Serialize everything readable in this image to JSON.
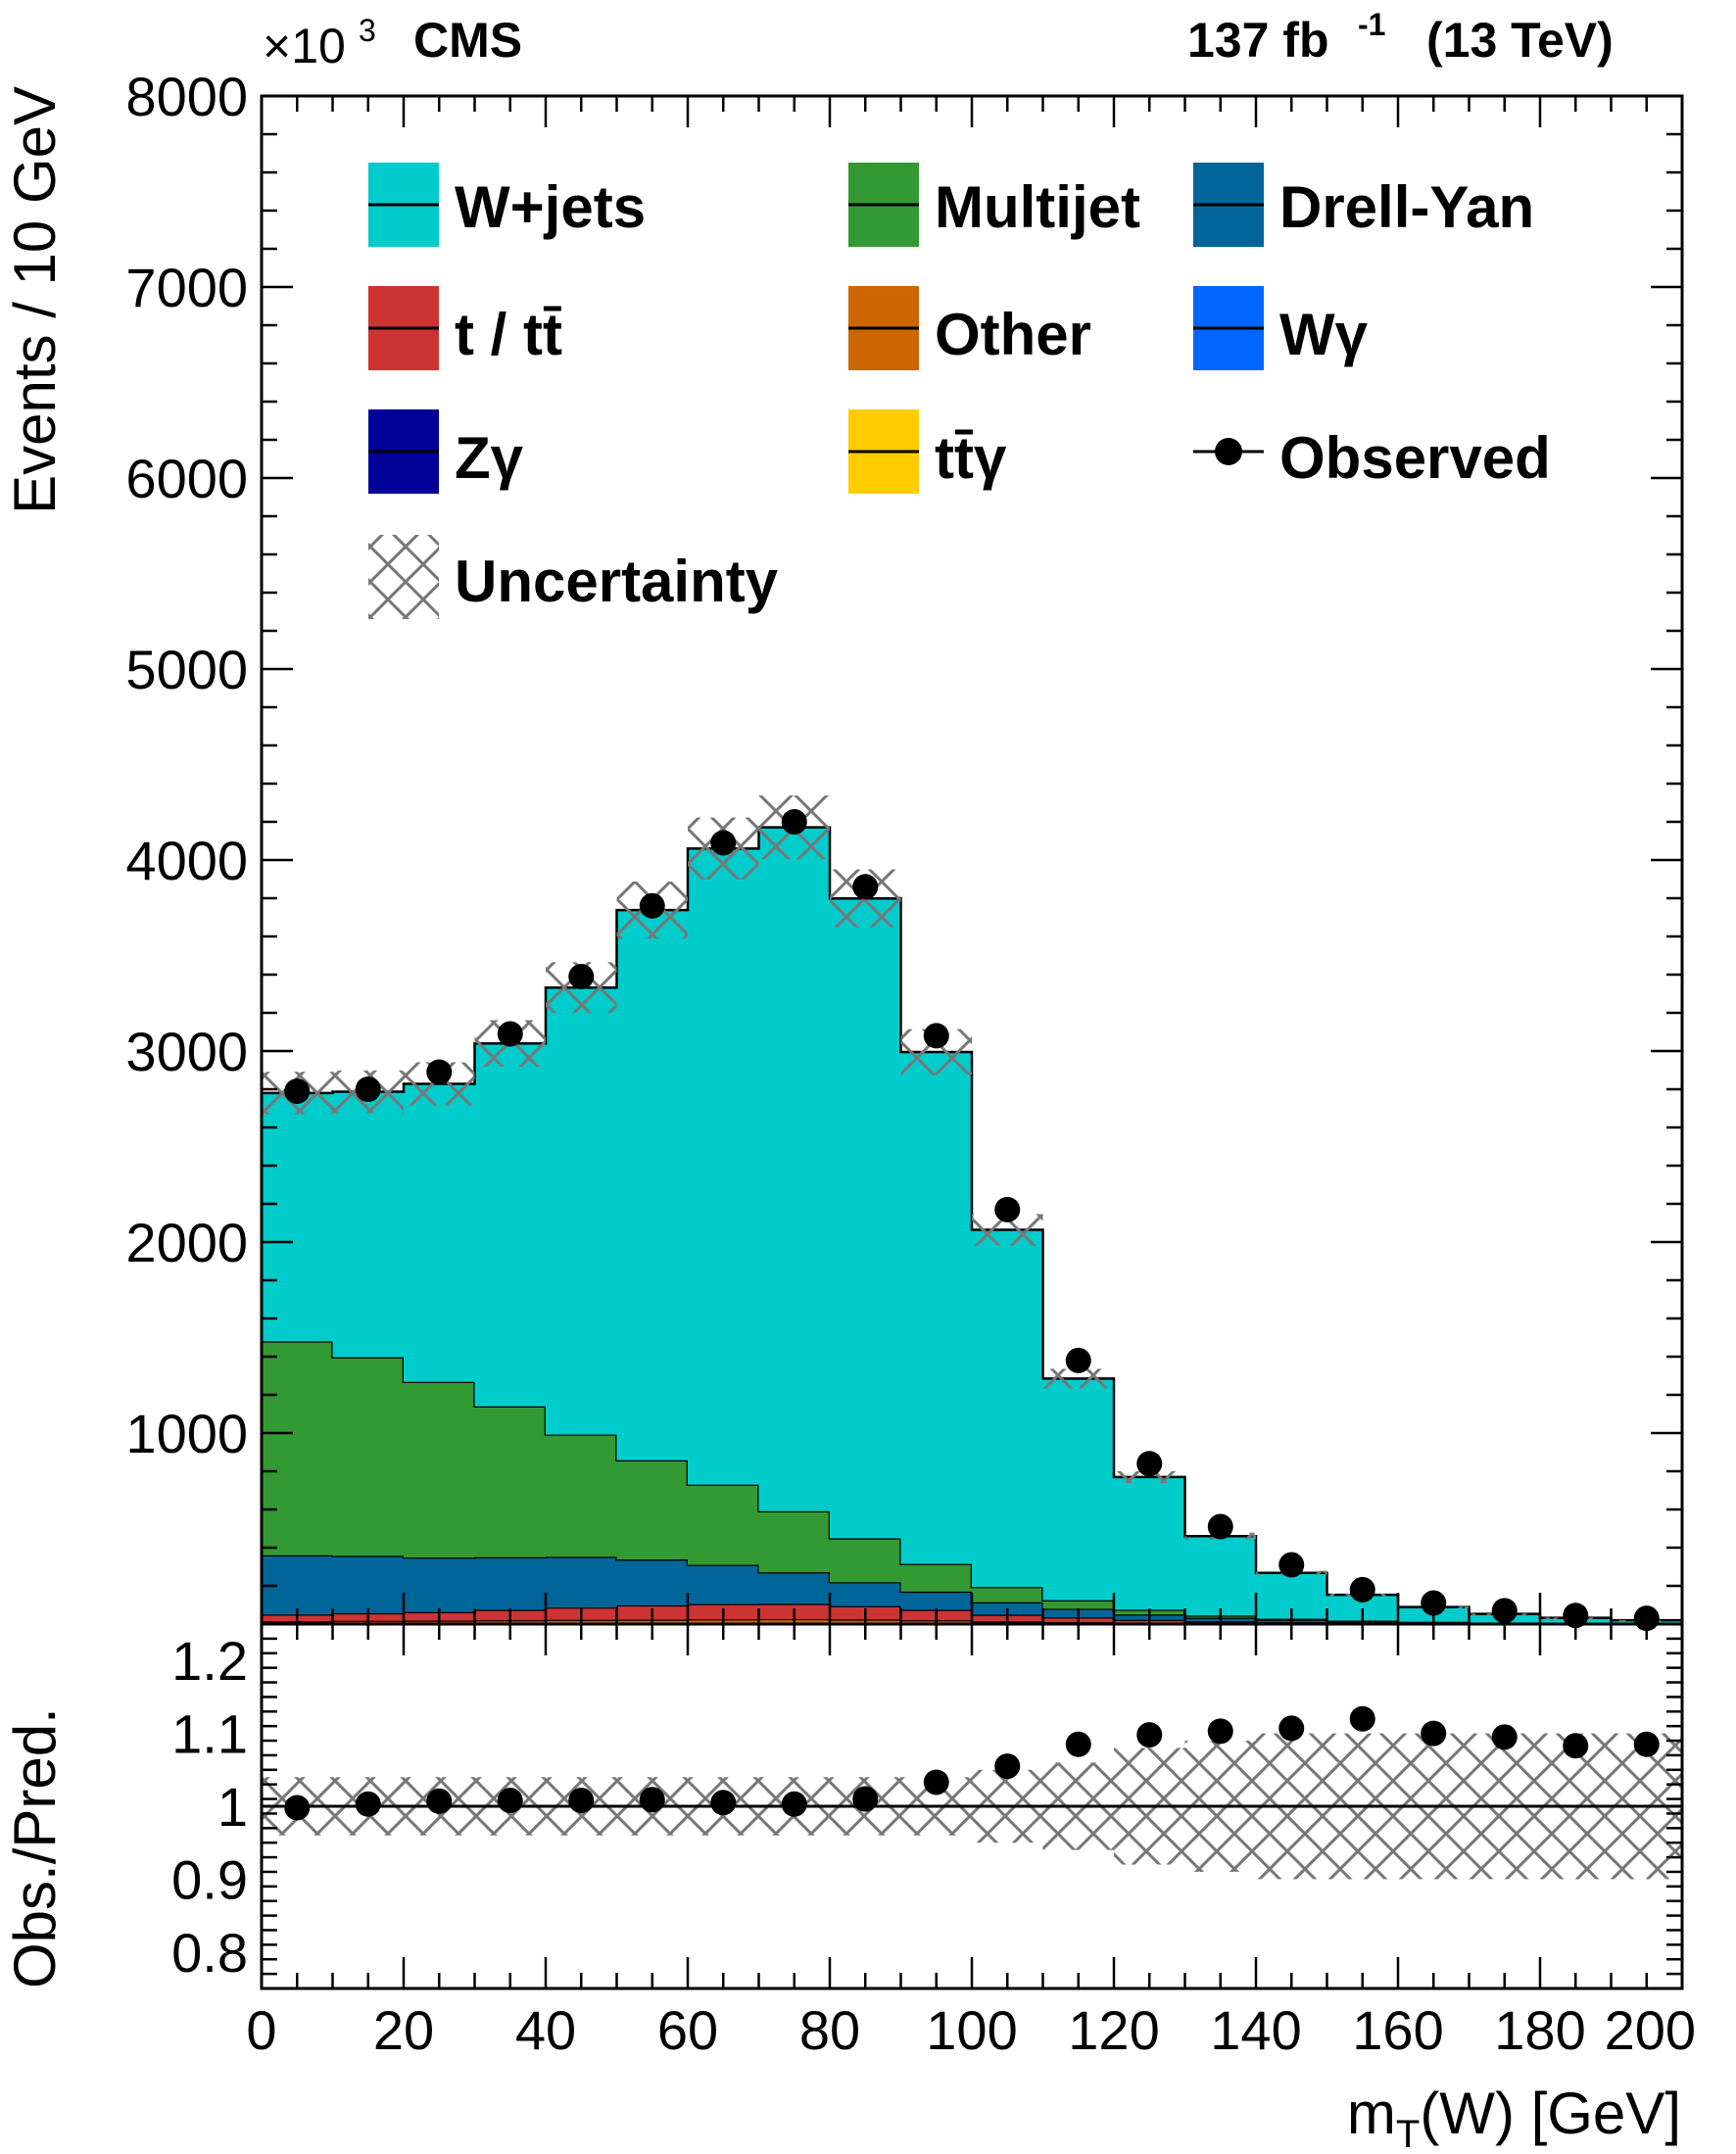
{
  "header": {
    "multiplier_base": "×10",
    "multiplier_exp": "3",
    "experiment": "CMS",
    "lumi_value": "137 fb",
    "lumi_exp": "-1",
    "lumi_energy": "(13 TeV)"
  },
  "chart_data": [
    {
      "type": "bar",
      "stacked": true,
      "xlabel_main": "m",
      "xlabel_sub": "T",
      "xlabel_rest": "(W) [GeV]",
      "ylabel": "Events / 10 GeV",
      "xlim": [
        0,
        200
      ],
      "ylim": [
        0,
        8000
      ],
      "bin_edges": [
        0,
        10,
        20,
        30,
        40,
        50,
        60,
        70,
        80,
        90,
        100,
        110,
        120,
        130,
        140,
        150,
        160,
        170,
        180,
        190,
        200
      ],
      "x_ticks": [
        0,
        20,
        40,
        60,
        80,
        100,
        120,
        140,
        160,
        180,
        200
      ],
      "x_tick_labels": [
        "0",
        "20",
        "40",
        "60",
        "80",
        "100",
        "120",
        "140",
        "160",
        "180",
        "200"
      ],
      "y_ticks": [
        1000,
        2000,
        3000,
        4000,
        5000,
        6000,
        7000,
        8000
      ],
      "y_tick_labels": [
        "1000",
        "2000",
        "3000",
        "4000",
        "5000",
        "6000",
        "7000",
        "8000"
      ],
      "grid": false,
      "legend_position": "top",
      "series": [
        {
          "name": "Other",
          "color": "#cc6600",
          "values": [
            15,
            17,
            18,
            20,
            22,
            23,
            25,
            26,
            24,
            20,
            14,
            10,
            7,
            5,
            4,
            3,
            2,
            2,
            1,
            1
          ]
        },
        {
          "name": "t / tt̄",
          "color": "#cc3333",
          "values": [
            35,
            40,
            45,
            55,
            65,
            75,
            80,
            80,
            70,
            55,
            35,
            25,
            15,
            10,
            6,
            4,
            3,
            2,
            1,
            1
          ]
        },
        {
          "name": "Drell-Yan",
          "color": "#006699",
          "values": [
            310,
            300,
            285,
            275,
            265,
            240,
            205,
            165,
            125,
            95,
            65,
            45,
            28,
            18,
            12,
            8,
            5,
            3,
            2,
            1
          ]
        },
        {
          "name": "Multijet",
          "color": "#339933",
          "values": [
            1120,
            1040,
            920,
            790,
            640,
            520,
            420,
            320,
            230,
            145,
            80,
            45,
            25,
            12,
            6,
            3,
            2,
            1,
            1,
            0
          ]
        },
        {
          "name": "W+jets",
          "color": "#00cccc",
          "values": [
            1300,
            1390,
            1560,
            1900,
            2340,
            2880,
            3330,
            3580,
            3350,
            2680,
            1870,
            1160,
            695,
            415,
            240,
            135,
            77,
            45,
            28,
            17
          ]
        }
      ],
      "observed": {
        "name": "Observed",
        "values": [
          2790,
          2800,
          2890,
          3090,
          3390,
          3760,
          4090,
          4200,
          3860,
          3080,
          2170,
          1380,
          840,
          510,
          310,
          180,
          110,
          70,
          45,
          30
        ]
      },
      "uncertainty": {
        "name": "Uncertainty",
        "rel": 0.04
      },
      "legend": {
        "labels": [
          "W+jets",
          "Multijet",
          "Drell-Yan",
          "t / tt̄",
          "Other",
          "Wγ",
          "Zγ",
          "tt̄γ",
          "Observed",
          "Uncertainty"
        ],
        "colors": {
          "Wgamma": "#0066ff",
          "Zgamma": "#000099",
          "ttgamma": "#ffcc00",
          "Observed": "#000000"
        }
      }
    },
    {
      "type": "scatter",
      "ylabel": "Obs./Pred.",
      "xlim": [
        0,
        200
      ],
      "ylim": [
        0.75,
        1.25
      ],
      "y_ticks": [
        0.8,
        0.9,
        1.0,
        1.1,
        1.2
      ],
      "y_tick_labels": [
        "0.8",
        "0.9",
        "1",
        "1.1",
        "1.2"
      ],
      "x": [
        5,
        15,
        25,
        35,
        45,
        55,
        65,
        75,
        85,
        95,
        105,
        115,
        125,
        135,
        145,
        155,
        165,
        175,
        185,
        195
      ],
      "values": [
        0.998,
        1.003,
        1.007,
        1.008,
        1.008,
        1.009,
        1.005,
        1.003,
        1.01,
        1.033,
        1.055,
        1.085,
        1.098,
        1.103,
        1.107,
        1.12,
        1.1,
        1.095,
        1.083,
        1.085
      ],
      "reference_line": 1.0,
      "uncertainty_band": [
        0.04,
        0.04,
        0.04,
        0.04,
        0.04,
        0.04,
        0.04,
        0.04,
        0.04,
        0.04,
        0.05,
        0.06,
        0.08,
        0.09,
        0.1,
        0.1,
        0.1,
        0.1,
        0.1,
        0.1
      ]
    }
  ]
}
